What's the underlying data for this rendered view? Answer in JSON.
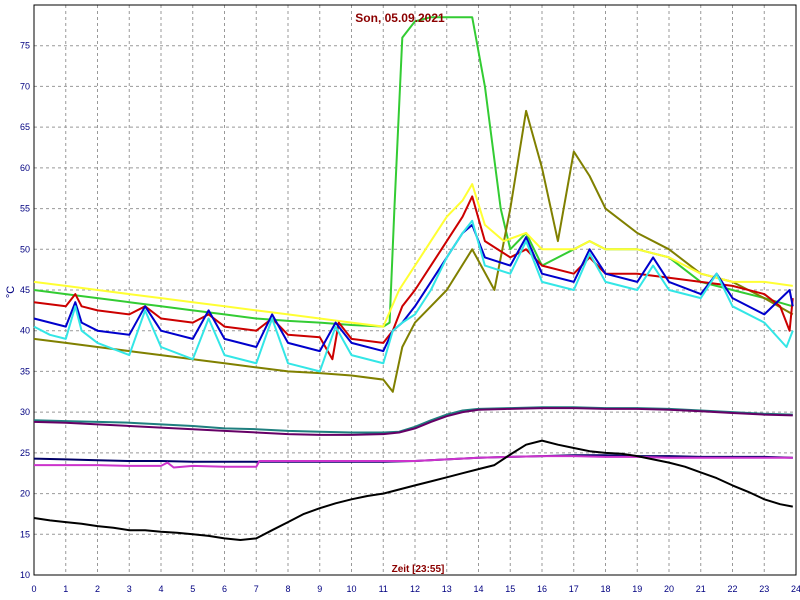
{
  "chart_data": {
    "type": "line",
    "title": "Son, 05.09.2021",
    "xlabel": "Zeit [23:55]",
    "ylabel": "°C",
    "xlim": [
      0,
      24
    ],
    "ylim": [
      10,
      80
    ],
    "x_ticks": [
      "0",
      "1",
      "2",
      "3",
      "4",
      "5",
      "6",
      "7",
      "8",
      "9",
      "10",
      "11",
      "12",
      "13",
      "14",
      "15",
      "16",
      "17",
      "18",
      "19",
      "20",
      "21",
      "22",
      "23",
      "24"
    ],
    "y_ticks": [
      "10",
      "15",
      "20",
      "25",
      "30",
      "35",
      "40",
      "45",
      "50",
      "55",
      "60",
      "65",
      "70",
      "75"
    ],
    "grid": true,
    "colors": {
      "green": "#33cc33",
      "olive": "#808000",
      "yellow": "#ffff33",
      "red": "#cc0000",
      "blue": "#0000cc",
      "cyan": "#33e6e6",
      "teal": "#1f7f7f",
      "purple": "#660066",
      "navy": "#000066",
      "magenta": "#cc33cc",
      "black": "#000000",
      "grid": "#999999",
      "axis_text": "#000080",
      "title": "#8b0000"
    },
    "series": [
      {
        "color": "green",
        "x": [
          0,
          1,
          2,
          3,
          4,
          5,
          6,
          7,
          8,
          9,
          10,
          11,
          11.2,
          11.35,
          11.6,
          12,
          12.5,
          13,
          13.5,
          13.8,
          14.2,
          14.7,
          15,
          15.5,
          16,
          17,
          17.5,
          18,
          19,
          20,
          21,
          22,
          23,
          23.9
        ],
        "y": [
          45,
          44.5,
          44,
          43.5,
          43,
          42.5,
          42,
          41.5,
          41.2,
          41,
          40.7,
          40.5,
          41,
          55,
          76,
          78,
          78.5,
          78.5,
          78.5,
          78.5,
          70,
          55,
          50,
          52,
          48,
          50,
          51,
          50,
          50,
          49,
          46,
          45,
          44,
          43
        ]
      },
      {
        "color": "olive",
        "x": [
          0,
          1,
          2,
          3,
          4,
          5,
          6,
          7,
          8,
          9,
          10,
          11,
          11.3,
          11.6,
          12,
          12.5,
          13,
          13.8,
          14.5,
          15,
          15.5,
          16,
          16.5,
          17,
          17.5,
          18,
          19,
          20,
          21,
          22,
          23,
          23.9
        ],
        "y": [
          39,
          38.5,
          38,
          37.5,
          37,
          36.5,
          36,
          35.5,
          35,
          34.8,
          34.5,
          34,
          32.5,
          38,
          41,
          43,
          45,
          50,
          45,
          55,
          67,
          60,
          51,
          62,
          59,
          55,
          52,
          50,
          47,
          46,
          44,
          42
        ]
      },
      {
        "color": "yellow",
        "x": [
          0,
          1,
          2,
          3,
          4,
          5,
          6,
          7,
          8,
          9,
          10,
          11,
          11.5,
          12,
          12.5,
          13,
          13.5,
          13.8,
          14.2,
          14.8,
          15.5,
          16,
          17,
          17.5,
          18,
          19,
          20,
          21,
          22,
          23,
          23.9
        ],
        "y": [
          46,
          45.5,
          45,
          44.5,
          44,
          43.5,
          43,
          42.5,
          42,
          41.5,
          41,
          40.5,
          45,
          48,
          51,
          54,
          56,
          58,
          53,
          51,
          52,
          50,
          50,
          51,
          50,
          50,
          49,
          47,
          46,
          46,
          45.5
        ]
      },
      {
        "color": "red",
        "x": [
          0,
          1,
          1.3,
          1.5,
          2,
          3,
          3.5,
          4,
          5,
          5.5,
          6,
          7,
          7.5,
          8,
          9,
          9.4,
          9.6,
          10,
          11,
          11.3,
          11.6,
          12,
          12.5,
          13,
          13.5,
          13.8,
          14.2,
          15,
          15.5,
          16,
          17,
          17.5,
          18,
          19,
          20,
          21,
          22,
          23,
          23.5,
          23.8,
          23.9
        ],
        "y": [
          43.5,
          43,
          44.5,
          43,
          42.5,
          42,
          43,
          41.5,
          41,
          42,
          40.5,
          40,
          41.5,
          39.5,
          39.2,
          36.5,
          41,
          39,
          38.5,
          40,
          43,
          45,
          48,
          51,
          54,
          56.5,
          51,
          49,
          50,
          48,
          47,
          49,
          47,
          47,
          46.5,
          46,
          45.5,
          44.5,
          43,
          40,
          44
        ]
      },
      {
        "color": "blue",
        "x": [
          0,
          1,
          1.3,
          1.5,
          2,
          3,
          3.5,
          4,
          5,
          5.5,
          6,
          7,
          7.5,
          8,
          9,
          9.5,
          10,
          11,
          11.3,
          11.6,
          12,
          12.5,
          13,
          13.5,
          13.8,
          14.2,
          15,
          15.5,
          16,
          17,
          17.5,
          18,
          19,
          19.5,
          20,
          21,
          21.5,
          22,
          23,
          23.8,
          23.9
        ],
        "y": [
          41.5,
          40.5,
          43.5,
          41,
          40,
          39.5,
          43,
          40,
          39,
          42.5,
          39,
          38,
          42,
          38.5,
          37.5,
          41,
          38.5,
          37.5,
          40,
          41,
          43,
          46,
          49,
          52,
          53,
          49,
          48,
          51.5,
          47,
          46,
          50,
          47,
          46,
          49,
          46,
          44.5,
          47,
          44,
          42,
          45,
          43
        ]
      },
      {
        "color": "cyan",
        "x": [
          0,
          0.5,
          1,
          1.3,
          1.5,
          2,
          3,
          3.5,
          4,
          5,
          5.5,
          6,
          7,
          7.5,
          8,
          9,
          9.5,
          10,
          11,
          11.3,
          11.6,
          12,
          12.5,
          13,
          13.5,
          13.8,
          14.2,
          15,
          15.5,
          16,
          17,
          17.5,
          18,
          19,
          19.5,
          20,
          21,
          21.5,
          22,
          23,
          23.7,
          23.9
        ],
        "y": [
          40.5,
          39.5,
          39,
          43,
          40,
          38.5,
          37,
          42.5,
          38,
          36.5,
          41.5,
          37,
          36,
          41.5,
          36,
          35,
          40.5,
          37,
          36,
          40,
          41,
          42,
          45,
          49,
          52,
          53.5,
          48,
          47,
          51,
          46,
          45,
          49.5,
          46,
          45,
          48,
          45,
          44,
          47,
          43,
          41,
          38,
          40
        ]
      },
      {
        "color": "teal",
        "x": [
          0,
          1,
          2,
          3,
          4,
          5,
          6,
          7,
          8,
          9,
          10,
          11,
          11.5,
          12,
          12.5,
          13,
          13.5,
          14,
          15,
          16,
          17,
          18,
          19,
          20,
          21,
          22,
          23,
          23.9
        ],
        "y": [
          29,
          28.9,
          28.8,
          28.7,
          28.5,
          28.3,
          28,
          27.9,
          27.7,
          27.6,
          27.5,
          27.5,
          27.6,
          28.2,
          29,
          29.7,
          30.2,
          30.4,
          30.5,
          30.6,
          30.6,
          30.5,
          30.5,
          30.4,
          30.2,
          30,
          29.8,
          29.7
        ]
      },
      {
        "color": "purple",
        "x": [
          0,
          1,
          2,
          3,
          4,
          5,
          6,
          7,
          8,
          9,
          10,
          11,
          11.5,
          12,
          12.5,
          13,
          13.5,
          14,
          15,
          16,
          17,
          18,
          19,
          20,
          21,
          22,
          23,
          23.9
        ],
        "y": [
          28.8,
          28.7,
          28.5,
          28.3,
          28.1,
          27.9,
          27.7,
          27.5,
          27.3,
          27.2,
          27.2,
          27.3,
          27.5,
          28,
          28.8,
          29.5,
          30,
          30.3,
          30.4,
          30.5,
          30.5,
          30.4,
          30.4,
          30.3,
          30.1,
          29.9,
          29.7,
          29.6
        ]
      },
      {
        "color": "navy",
        "x": [
          0,
          1,
          2,
          3,
          4,
          5,
          6,
          7,
          8,
          9,
          10,
          11,
          12,
          13,
          14,
          15,
          16,
          17,
          18,
          19,
          20,
          21,
          22,
          23,
          23.9
        ],
        "y": [
          24.3,
          24.2,
          24.1,
          24,
          24,
          23.9,
          23.9,
          23.9,
          23.9,
          23.9,
          23.9,
          23.9,
          24,
          24.2,
          24.4,
          24.5,
          24.6,
          24.7,
          24.7,
          24.6,
          24.6,
          24.5,
          24.5,
          24.5,
          24.4
        ]
      },
      {
        "color": "magenta",
        "x": [
          0,
          1,
          2,
          3,
          4,
          4.2,
          4.4,
          5,
          6,
          7,
          7.1,
          8,
          9,
          10,
          11,
          12,
          13,
          14,
          15,
          16,
          17,
          18,
          19,
          20,
          21,
          22,
          23,
          23.9
        ],
        "y": [
          23.5,
          23.5,
          23.5,
          23.4,
          23.4,
          23.8,
          23.2,
          23.4,
          23.3,
          23.3,
          24,
          24,
          24,
          24,
          24,
          24,
          24.2,
          24.4,
          24.5,
          24.6,
          24.6,
          24.5,
          24.5,
          24.4,
          24.4,
          24.4,
          24.4,
          24.4
        ]
      },
      {
        "color": "black",
        "x": [
          0,
          0.5,
          1,
          1.5,
          2,
          2.5,
          3,
          3.5,
          4,
          4.5,
          5,
          5.5,
          6,
          6.5,
          7,
          7.5,
          8,
          8.5,
          9,
          9.5,
          10,
          10.5,
          11,
          11.5,
          12,
          12.5,
          13,
          13.5,
          14,
          14.5,
          15,
          15.5,
          16,
          16.5,
          17,
          17.5,
          18,
          18.5,
          19,
          19.5,
          20,
          20.5,
          21,
          21.5,
          22,
          22.5,
          23,
          23.5,
          23.9
        ],
        "y": [
          17,
          16.7,
          16.5,
          16.3,
          16,
          15.8,
          15.5,
          15.5,
          15.3,
          15.2,
          15,
          14.8,
          14.5,
          14.3,
          14.5,
          15.5,
          16.5,
          17.5,
          18.2,
          18.8,
          19.3,
          19.7,
          20,
          20.5,
          21,
          21.5,
          22,
          22.5,
          23,
          23.5,
          24.8,
          26,
          26.5,
          26,
          25.6,
          25.2,
          25,
          24.9,
          24.6,
          24.2,
          23.8,
          23.3,
          22.6,
          21.9,
          21,
          20.2,
          19.3,
          18.7,
          18.4
        ]
      }
    ]
  }
}
